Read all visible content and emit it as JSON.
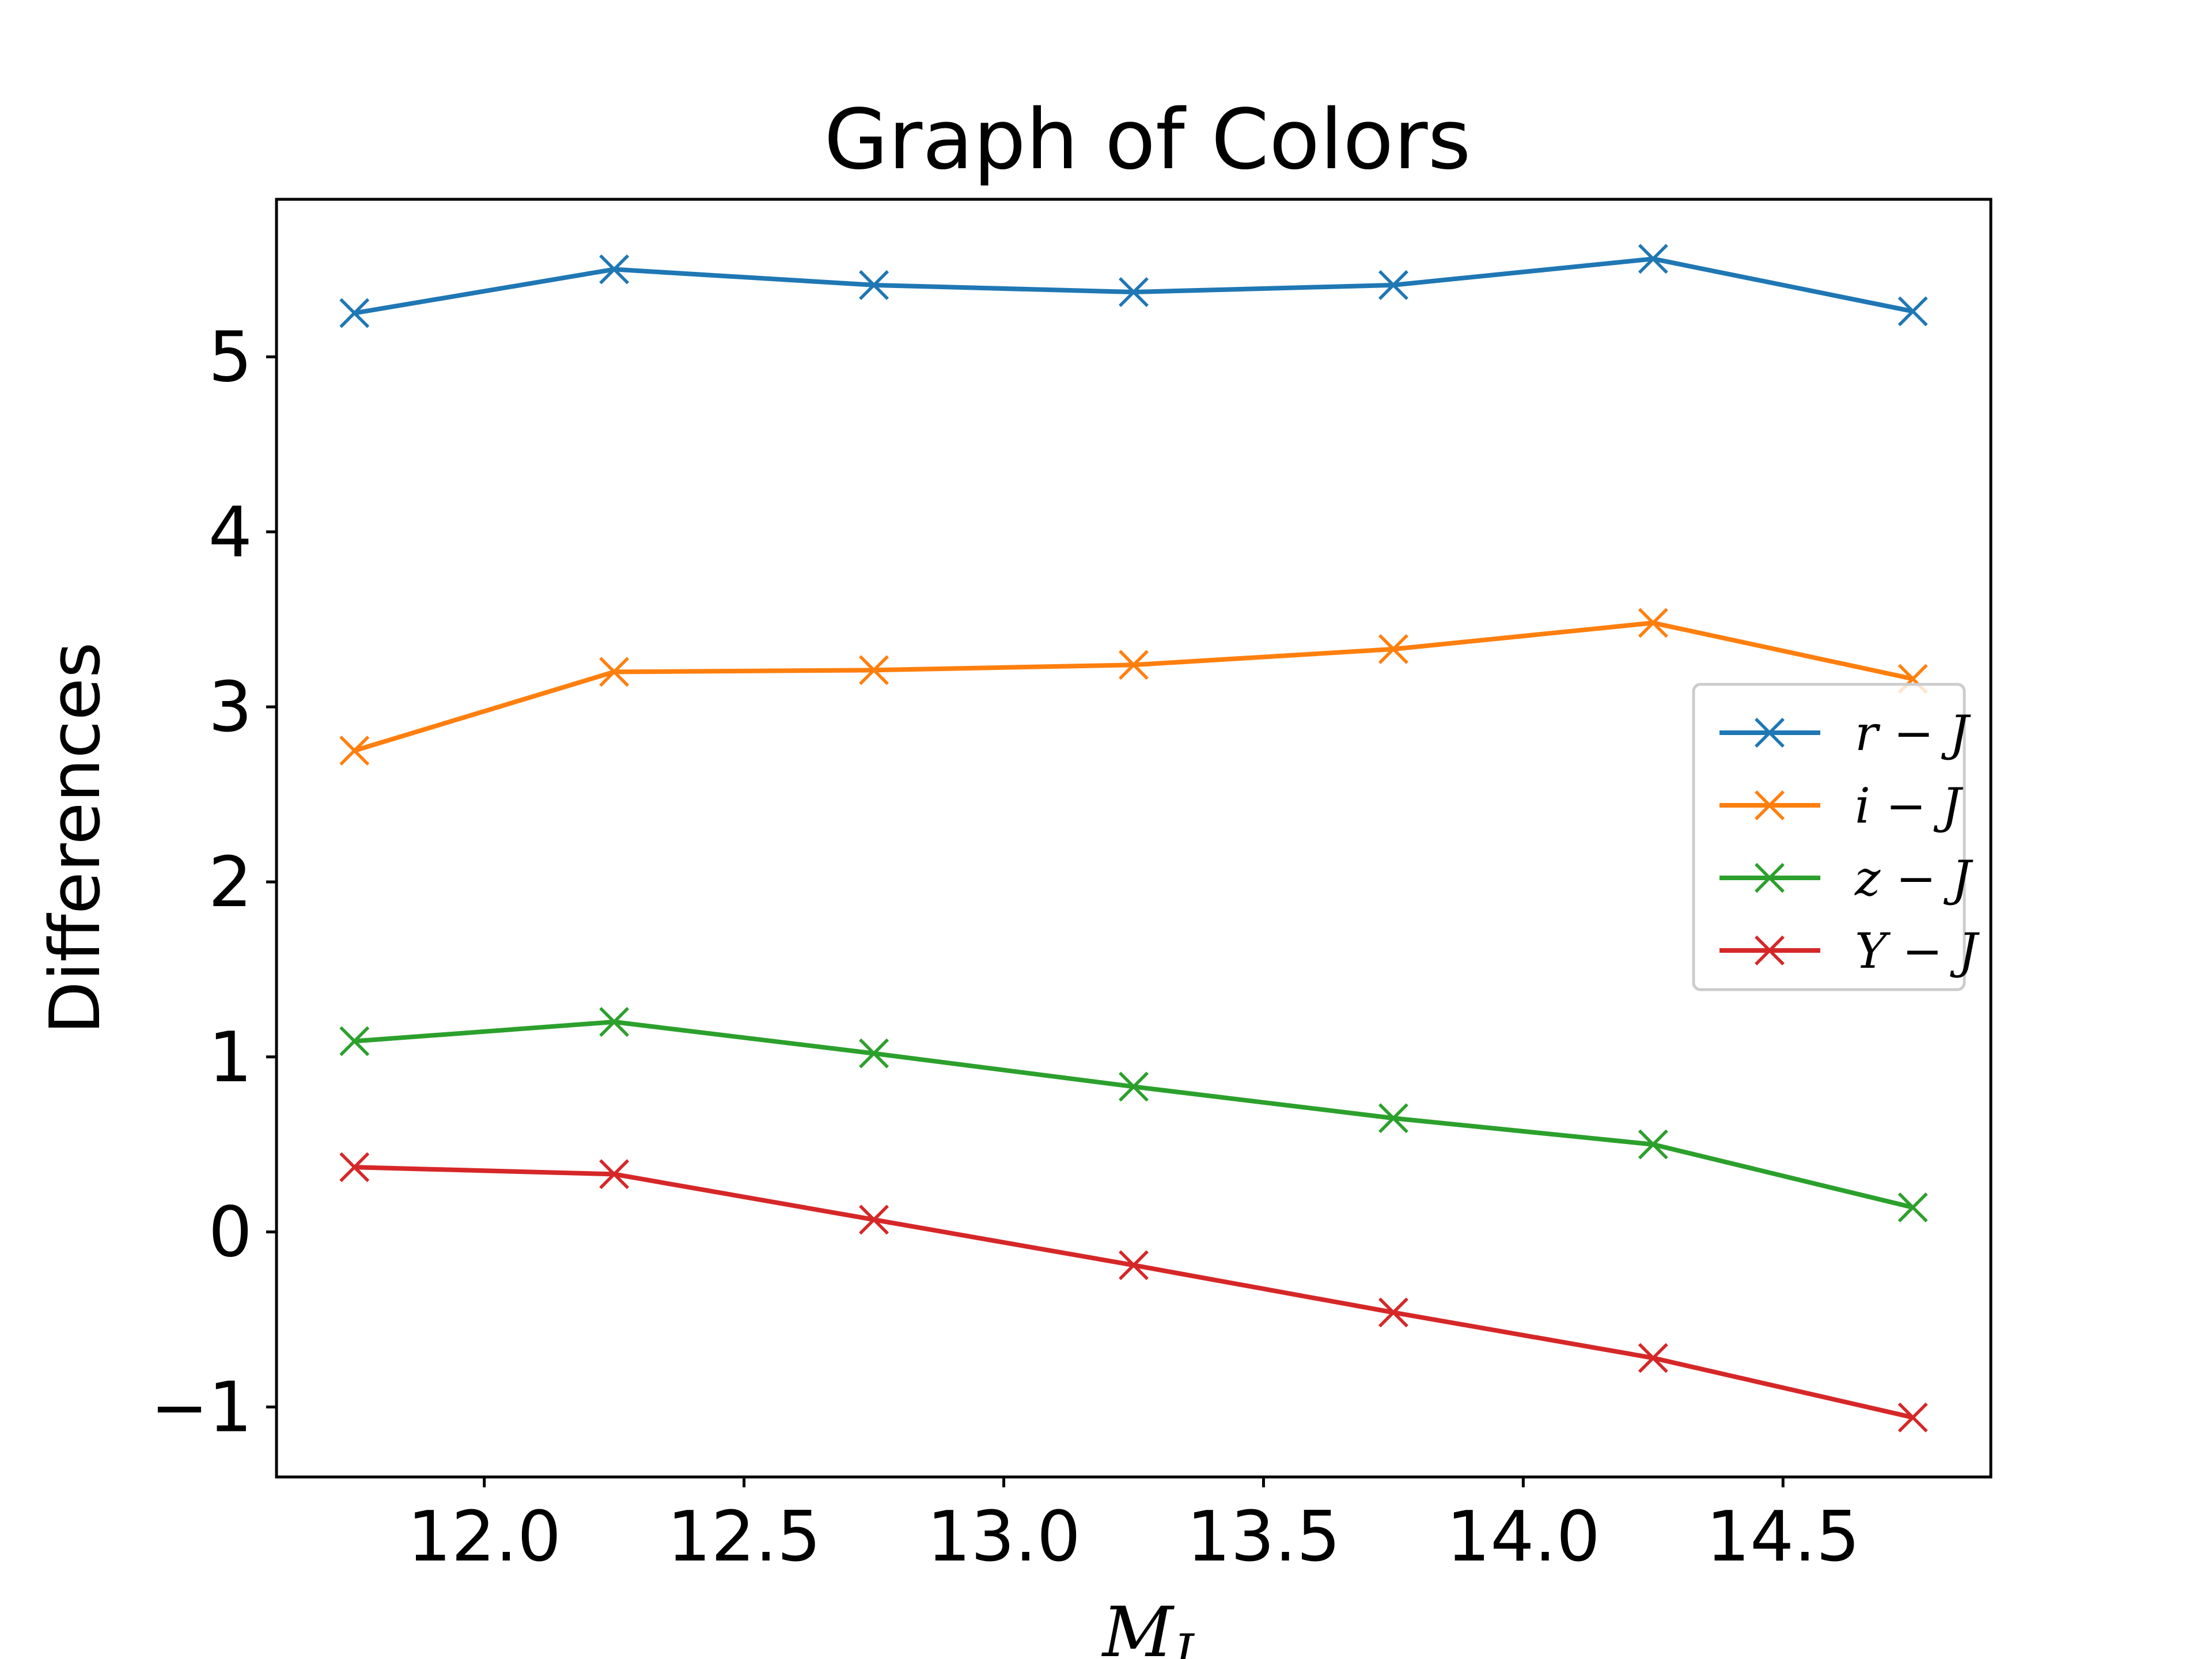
{
  "chart_data": {
    "type": "line",
    "title": "Graph of Colors",
    "xlabel": "M",
    "xlabel_subscript": "J",
    "ylabel": "Differences",
    "x": [
      11.75,
      12.25,
      12.75,
      13.25,
      13.75,
      14.25,
      14.75
    ],
    "xlim": [
      11.6,
      14.9
    ],
    "ylim": [
      -1.4,
      5.9
    ],
    "xticks": [
      12.0,
      12.5,
      13.0,
      13.5,
      14.0,
      14.5
    ],
    "xtick_labels": [
      "12.0",
      "12.5",
      "13.0",
      "13.5",
      "14.0",
      "14.5"
    ],
    "yticks": [
      -1,
      0,
      1,
      2,
      3,
      4,
      5
    ],
    "ytick_labels": [
      "−1",
      "0",
      "1",
      "2",
      "3",
      "4",
      "5"
    ],
    "grid": false,
    "legend_position": "center-right",
    "marker": "x",
    "series": [
      {
        "name": "r − J",
        "color": "#1f77b4",
        "values": [
          5.25,
          5.5,
          5.41,
          5.37,
          5.41,
          5.56,
          5.26
        ]
      },
      {
        "name": "i − J",
        "color": "#ff7f0e",
        "values": [
          2.75,
          3.2,
          3.21,
          3.24,
          3.33,
          3.48,
          3.16
        ]
      },
      {
        "name": "z − J",
        "color": "#2ca02c",
        "values": [
          1.09,
          1.2,
          1.02,
          0.83,
          0.65,
          0.5,
          0.14
        ]
      },
      {
        "name": "Y − J",
        "color": "#d62728",
        "values": [
          0.37,
          0.33,
          0.07,
          -0.19,
          -0.46,
          -0.72,
          -1.06
        ]
      }
    ]
  }
}
